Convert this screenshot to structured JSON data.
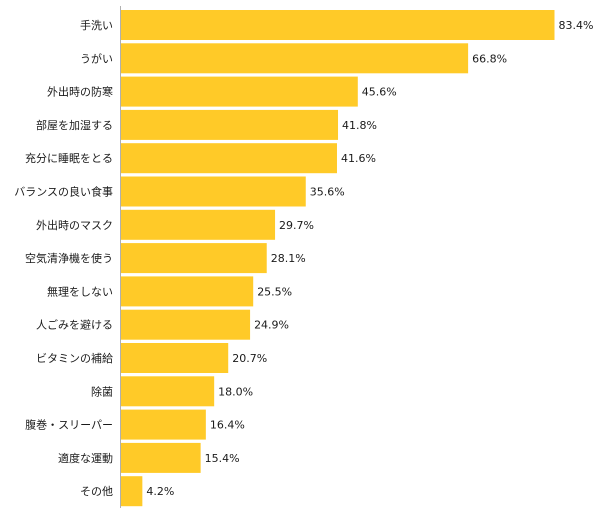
{
  "chart_data": {
    "type": "bar",
    "orientation": "horizontal",
    "title": "",
    "xlabel": "",
    "ylabel": "",
    "bar_color": "#FFCA28",
    "value_suffix": "%",
    "xlim": [
      0,
      83.4
    ],
    "grid": false,
    "legend": "none",
    "categories": [
      "手洗い",
      "うがい",
      "外出時の防寒",
      "部屋を加湿する",
      "充分に睡眠をとる",
      "バランスの良い食事",
      "外出時のマスク",
      "空気清浄機を使う",
      "無理をしない",
      "人ごみを避ける",
      "ビタミンの補給",
      "除菌",
      "腹巻・スリーパー",
      "適度な運動",
      "その他"
    ],
    "values": [
      83.4,
      66.8,
      45.6,
      41.8,
      41.6,
      35.6,
      29.7,
      28.1,
      25.5,
      24.9,
      20.7,
      18.0,
      16.4,
      15.4,
      4.2
    ]
  }
}
